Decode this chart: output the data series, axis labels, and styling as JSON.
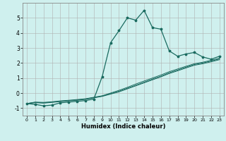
{
  "title": "",
  "xlabel": "Humidex (Indice chaleur)",
  "ylabel": "",
  "xlim": [
    -0.5,
    23.5
  ],
  "ylim": [
    -1.5,
    6.0
  ],
  "xticks": [
    0,
    1,
    2,
    3,
    4,
    5,
    6,
    7,
    8,
    9,
    10,
    11,
    12,
    13,
    14,
    15,
    16,
    17,
    18,
    19,
    20,
    21,
    22,
    23
  ],
  "yticks": [
    -1,
    0,
    1,
    2,
    3,
    4,
    5
  ],
  "bg_color": "#cff0ee",
  "grid_color": "#b0b0b0",
  "line_color": "#1a6b60",
  "line1_x": [
    0,
    1,
    2,
    3,
    4,
    5,
    6,
    7,
    8,
    9,
    10,
    11,
    12,
    13,
    14,
    15,
    16,
    17,
    18,
    19,
    20,
    21,
    22,
    23
  ],
  "line1_y": [
    -0.7,
    -0.75,
    -0.85,
    -0.8,
    -0.65,
    -0.6,
    -0.55,
    -0.5,
    -0.4,
    1.1,
    3.35,
    4.15,
    5.0,
    4.85,
    5.5,
    4.35,
    4.25,
    2.8,
    2.45,
    2.6,
    2.7,
    2.4,
    2.25,
    2.45
  ],
  "line2_x": [
    0,
    1,
    2,
    3,
    4,
    5,
    6,
    7,
    8,
    9,
    10,
    11,
    12,
    13,
    14,
    15,
    16,
    17,
    18,
    19,
    20,
    21,
    22,
    23
  ],
  "line2_y": [
    -0.7,
    -0.6,
    -0.62,
    -0.58,
    -0.52,
    -0.48,
    -0.43,
    -0.38,
    -0.28,
    -0.18,
    0.0,
    0.18,
    0.38,
    0.6,
    0.8,
    1.0,
    1.2,
    1.42,
    1.6,
    1.78,
    1.95,
    2.05,
    2.18,
    2.32
  ],
  "line3_x": [
    0,
    1,
    2,
    3,
    4,
    5,
    6,
    7,
    8,
    9,
    10,
    11,
    12,
    13,
    14,
    15,
    16,
    17,
    18,
    19,
    20,
    21,
    22,
    23
  ],
  "line3_y": [
    -0.7,
    -0.62,
    -0.65,
    -0.6,
    -0.55,
    -0.5,
    -0.46,
    -0.4,
    -0.3,
    -0.2,
    -0.04,
    0.12,
    0.32,
    0.52,
    0.72,
    0.93,
    1.12,
    1.35,
    1.53,
    1.72,
    1.9,
    2.0,
    2.13,
    2.27
  ],
  "line4_x": [
    0,
    1,
    2,
    3,
    4,
    5,
    6,
    7,
    8,
    9,
    10,
    11,
    12,
    13,
    14,
    15,
    16,
    17,
    18,
    19,
    20,
    21,
    22,
    23
  ],
  "line4_y": [
    -0.7,
    -0.64,
    -0.67,
    -0.62,
    -0.57,
    -0.52,
    -0.48,
    -0.42,
    -0.32,
    -0.22,
    -0.07,
    0.08,
    0.28,
    0.48,
    0.68,
    0.88,
    1.08,
    1.3,
    1.48,
    1.67,
    1.85,
    1.95,
    2.08,
    2.22
  ]
}
